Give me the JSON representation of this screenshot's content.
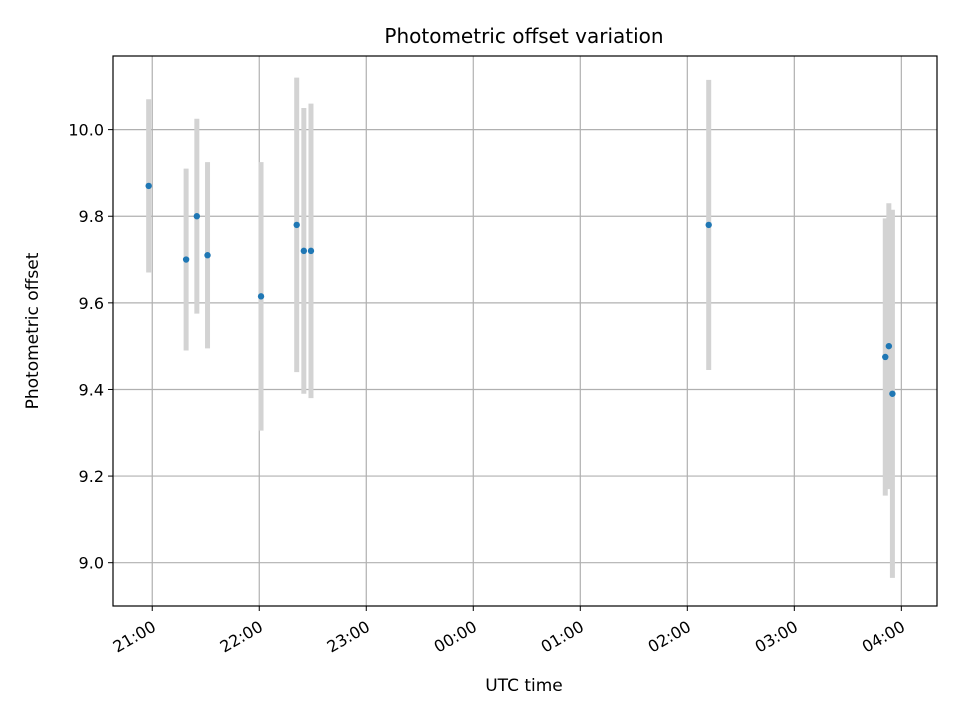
{
  "chart_data": {
    "type": "scatter",
    "title": "Photometric offset variation",
    "xlabel": "UTC time",
    "ylabel": "Photometric offset",
    "grid": true,
    "x_ticks": [
      "21:00",
      "22:00",
      "23:00",
      "00:00",
      "01:00",
      "02:00",
      "03:00",
      "04:00"
    ],
    "y_ticks": [
      "9.0",
      "9.2",
      "9.4",
      "9.6",
      "9.8",
      "10.0"
    ],
    "ylim": [
      8.9,
      10.17
    ],
    "xlim": [
      "20:38",
      "04:20"
    ],
    "point_color": "#1f77b4",
    "errorbar_color": "#d3d3d3",
    "points": [
      {
        "x": "20:58",
        "y": 9.87,
        "yerr": 0.2
      },
      {
        "x": "21:19",
        "y": 9.7,
        "yerr": 0.21
      },
      {
        "x": "21:25",
        "y": 9.8,
        "yerr": 0.225
      },
      {
        "x": "21:31",
        "y": 9.71,
        "yerr": 0.215
      },
      {
        "x": "22:01",
        "y": 9.615,
        "yerr": 0.31
      },
      {
        "x": "22:21",
        "y": 9.78,
        "yerr": 0.34
      },
      {
        "x": "22:25",
        "y": 9.72,
        "yerr": 0.33
      },
      {
        "x": "22:29",
        "y": 9.72,
        "yerr": 0.34
      },
      {
        "x": "02:12",
        "y": 9.78,
        "yerr": 0.335
      },
      {
        "x": "03:51",
        "y": 9.475,
        "yerr": 0.32
      },
      {
        "x": "03:53",
        "y": 9.5,
        "yerr": 0.33
      },
      {
        "x": "03:55",
        "y": 9.39,
        "yerr": 0.425
      }
    ]
  }
}
